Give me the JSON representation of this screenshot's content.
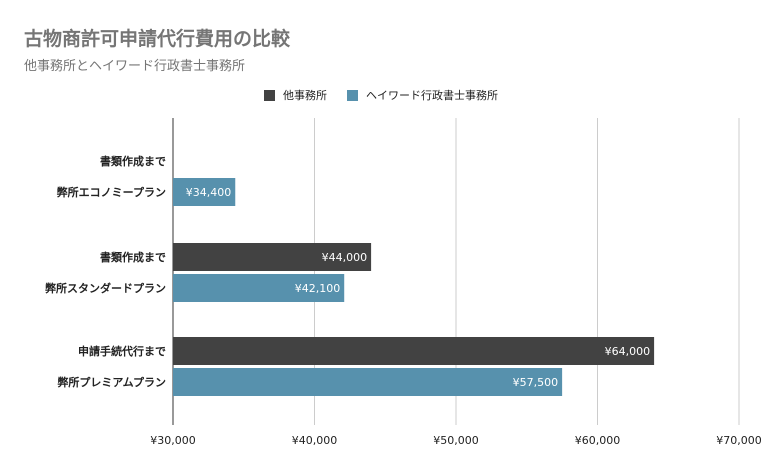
{
  "title": "古物商許可申請代行費用の比較",
  "subtitle": "他事務所とヘイワード行政書士事務所",
  "chart_data": {
    "type": "bar",
    "orientation": "horizontal",
    "legend_position": "top",
    "grid": true,
    "xlim": [
      30000,
      70000
    ],
    "x_ticks": [
      30000,
      40000,
      50000,
      60000,
      70000
    ],
    "tick_labels": [
      "¥30,000",
      "¥40,000",
      "¥50,000",
      "¥60,000",
      "¥70,000"
    ],
    "series": [
      {
        "name": "他事務所",
        "color": "#424242"
      },
      {
        "name": "ヘイワード行政書士事務所",
        "color": "#5791ad"
      }
    ],
    "groups": [
      {
        "bars": [
          {
            "series": 0,
            "label": "書類作成まで",
            "value": null,
            "value_label": ""
          },
          {
            "series": 1,
            "label": "弊所エコノミープラン",
            "value": 34400,
            "value_label": "¥34,400"
          }
        ]
      },
      {
        "bars": [
          {
            "series": 0,
            "label": "書類作成まで",
            "value": 44000,
            "value_label": "¥44,000"
          },
          {
            "series": 1,
            "label": "弊所スタンダードプラン",
            "value": 42100,
            "value_label": "¥42,100"
          }
        ]
      },
      {
        "bars": [
          {
            "series": 0,
            "label": "申請手続代行まで",
            "value": 64000,
            "value_label": "¥64,000"
          },
          {
            "series": 1,
            "label": "弊所プレミアムプラン",
            "value": 57500,
            "value_label": "¥57,500"
          }
        ]
      }
    ]
  }
}
